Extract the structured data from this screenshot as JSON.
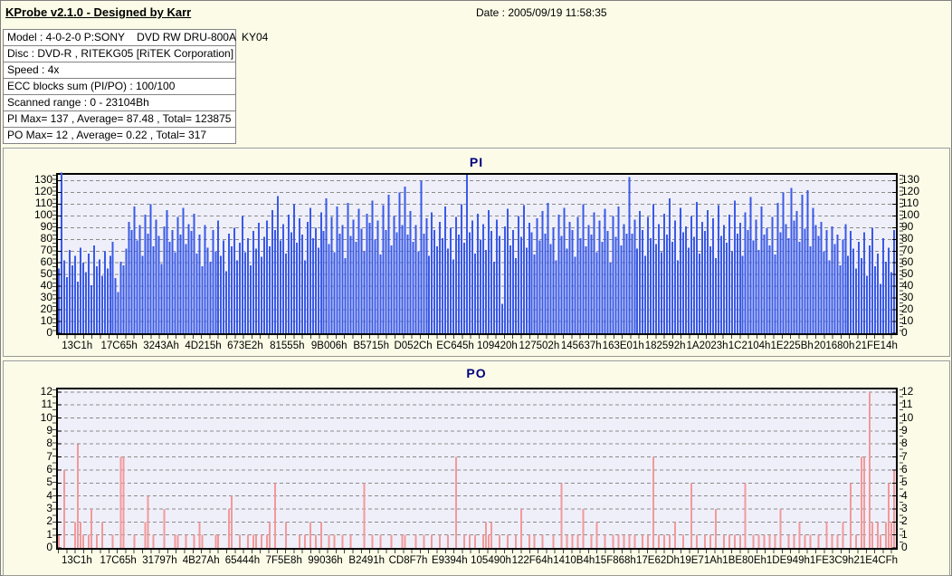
{
  "header": {
    "title": "KProbe v2.1.0 - Designed by Karr",
    "date": "Date : 2005/09/19 11:58:35"
  },
  "info": {
    "rows": [
      "Model : 4-0-2-0 P:SONY    DVD RW DRU-800A  KY04",
      "Disc : DVD-R , RITEKG05 [RiTEK Corporation]",
      "Speed : 4x",
      "ECC blocks sum (PI/PO) : 100/100",
      "Scanned range : 0 - 23104Bh",
      "PI Max= 137 , Average= 87.48 , Total= 123875",
      "PO Max= 12 , Average= 0.22 , Total= 317"
    ]
  },
  "colors": {
    "pi_bar": "#3a5ae6",
    "po_bar": "#f29a9a",
    "plot_bg": "#efeffa",
    "grid": "#8b8b8b",
    "title_navy": "#000080",
    "page_bg": "#fbfbe7"
  },
  "chart_data": [
    {
      "type": "bar",
      "title": "PI",
      "ylabel": "",
      "xlabel": "",
      "ylim": [
        0,
        135
      ],
      "grid": true,
      "legend": "none",
      "bar_color": "#3a5ae6",
      "stats": {
        "max": 137,
        "average": 87.48,
        "total": 123875
      },
      "yticks": [
        0,
        10,
        20,
        30,
        40,
        50,
        60,
        70,
        80,
        90,
        100,
        110,
        120,
        130
      ],
      "xlabels": [
        "13C1h",
        "17C65h",
        "3243Ah",
        "4D215h",
        "673E2h",
        "81555h",
        "9B006h",
        "B5715h",
        "D052Ch",
        "EC645h",
        "109420h",
        "127502h",
        "145637h",
        "163E01h",
        "182592h",
        "1A2023h",
        "1C2104h",
        "1E225Bh",
        "201680h",
        "21FE14h"
      ],
      "values": [
        55,
        137,
        62,
        48,
        71,
        58,
        66,
        44,
        73,
        60,
        52,
        68,
        41,
        75,
        57,
        63,
        49,
        70,
        55,
        66,
        78,
        47,
        35,
        61,
        58,
        72,
        95,
        88,
        108,
        79,
        92,
        66,
        101,
        85,
        110,
        74,
        97,
        83,
        59,
        91,
        105,
        78,
        88,
        69,
        99,
        84,
        107,
        76,
        93,
        87,
        102,
        68,
        84,
        57,
        92,
        73,
        61,
        88,
        70,
        96,
        66,
        79,
        53,
        85,
        74,
        90,
        62,
        77,
        100,
        69,
        81,
        58,
        87,
        72,
        94,
        65,
        82,
        96,
        74,
        105,
        88,
        117,
        79,
        93,
        68,
        101,
        86,
        110,
        77,
        98,
        84,
        62,
        95,
        107,
        81,
        90,
        73,
        103,
        87,
        115,
        76,
        99,
        69,
        108,
        85,
        92,
        64,
        111,
        83,
        97,
        78,
        106,
        89,
        70,
        102,
        94,
        113,
        80,
        96,
        67,
        109,
        88,
        118,
        75,
        100,
        86,
        120,
        92,
        125,
        84,
        104,
        78,
        92,
        70,
        130,
        85,
        98,
        66,
        103,
        88,
        74,
        95,
        81,
        108,
        72,
        90,
        63,
        99,
        84,
        110,
        77,
        135,
        86,
        96,
        68,
        102,
        80,
        93,
        71,
        105,
        87,
        61,
        97,
        83,
        25,
        91,
        106,
        75,
        88,
        64,
        100,
        82,
        109,
        73,
        94,
        86,
        67,
        98,
        79,
        104,
        85,
        111,
        76,
        90,
        62,
        101,
        83,
        107,
        72,
        95,
        88,
        65,
        99,
        81,
        110,
        74,
        92,
        84,
        103,
        69,
        96,
        78,
        106,
        87,
        60,
        100,
        82,
        108,
        75,
        93,
        85,
        133,
        85,
        97,
        72,
        104,
        88,
        66,
        99,
        81,
        110,
        76,
        93,
        69,
        102,
        84,
        115,
        78,
        96,
        62,
        107,
        86,
        91,
        73,
        100,
        82,
        112,
        68,
        95,
        87,
        105,
        74,
        98,
        64,
        109,
        83,
        92,
        77,
        101,
        70,
        113,
        85,
        94,
        66,
        103,
        88,
        116,
        79,
        97,
        71,
        108,
        84,
        90,
        75,
        99,
        67,
        111,
        86,
        120,
        93,
        81,
        124,
        96,
        104,
        78,
        118,
        89,
        122,
        74,
        107,
        92,
        83,
        95,
        70,
        88,
        62,
        91,
        76,
        84,
        58,
        80,
        93,
        66,
        87,
        72,
        55,
        78,
        64,
        86,
        49,
        75,
        90,
        57,
        68,
        42,
        81,
        61,
        73,
        52,
        88
      ]
    },
    {
      "type": "bar",
      "title": "PO",
      "ylabel": "",
      "xlabel": "",
      "ylim": [
        0,
        12.2
      ],
      "grid": true,
      "legend": "none",
      "bar_color": "#f29a9a",
      "stats": {
        "max": 12,
        "average": 0.22,
        "total": 317
      },
      "yticks": [
        0,
        1,
        2,
        3,
        4,
        5,
        6,
        7,
        8,
        9,
        10,
        11,
        12
      ],
      "xlabels": [
        "13C1h",
        "17C65h",
        "31797h",
        "4B27Ah",
        "65444h",
        "7F5E8h",
        "99036h",
        "B2491h",
        "CD8F7h",
        "E9394h",
        "105490h",
        "122F64h",
        "1410B4h",
        "15F868h",
        "17E62Dh",
        "19E71Ah",
        "1BE80Eh",
        "1DE949h",
        "1FE3C9h",
        "21E4CFh"
      ],
      "count": 310,
      "points": [
        [
          0,
          1
        ],
        [
          2,
          6
        ],
        [
          6,
          2
        ],
        [
          7,
          8
        ],
        [
          8,
          2
        ],
        [
          9,
          1
        ],
        [
          11,
          1
        ],
        [
          12,
          3
        ],
        [
          14,
          1
        ],
        [
          16,
          2
        ],
        [
          20,
          1
        ],
        [
          23,
          7
        ],
        [
          24,
          7
        ],
        [
          28,
          1
        ],
        [
          32,
          2
        ],
        [
          33,
          4
        ],
        [
          35,
          1
        ],
        [
          39,
          3
        ],
        [
          43,
          1
        ],
        [
          44,
          1
        ],
        [
          47,
          1
        ],
        [
          50,
          1
        ],
        [
          52,
          2
        ],
        [
          53,
          1
        ],
        [
          58,
          1
        ],
        [
          59,
          1
        ],
        [
          63,
          3
        ],
        [
          64,
          4
        ],
        [
          67,
          1
        ],
        [
          70,
          1
        ],
        [
          72,
          1
        ],
        [
          73,
          1
        ],
        [
          75,
          1
        ],
        [
          77,
          1
        ],
        [
          78,
          2
        ],
        [
          80,
          5
        ],
        [
          84,
          2
        ],
        [
          89,
          1
        ],
        [
          91,
          1
        ],
        [
          93,
          2
        ],
        [
          95,
          1
        ],
        [
          97,
          2
        ],
        [
          100,
          1
        ],
        [
          102,
          1
        ],
        [
          105,
          1
        ],
        [
          108,
          1
        ],
        [
          113,
          5
        ],
        [
          116,
          1
        ],
        [
          119,
          1
        ],
        [
          123,
          1
        ],
        [
          127,
          1
        ],
        [
          128,
          1
        ],
        [
          132,
          1
        ],
        [
          135,
          1
        ],
        [
          138,
          1
        ],
        [
          141,
          1
        ],
        [
          144,
          1
        ],
        [
          147,
          7
        ],
        [
          150,
          1
        ],
        [
          152,
          1
        ],
        [
          154,
          1
        ],
        [
          157,
          1
        ],
        [
          158,
          2
        ],
        [
          159,
          1
        ],
        [
          160,
          2
        ],
        [
          163,
          1
        ],
        [
          166,
          1
        ],
        [
          169,
          1
        ],
        [
          171,
          3
        ],
        [
          174,
          1
        ],
        [
          176,
          1
        ],
        [
          179,
          1
        ],
        [
          183,
          1
        ],
        [
          186,
          5
        ],
        [
          188,
          1
        ],
        [
          190,
          1
        ],
        [
          192,
          1
        ],
        [
          194,
          3
        ],
        [
          197,
          1
        ],
        [
          199,
          2
        ],
        [
          202,
          1
        ],
        [
          205,
          1
        ],
        [
          207,
          1
        ],
        [
          209,
          1
        ],
        [
          211,
          1
        ],
        [
          213,
          1
        ],
        [
          216,
          1
        ],
        [
          218,
          1
        ],
        [
          220,
          7
        ],
        [
          222,
          1
        ],
        [
          224,
          1
        ],
        [
          226,
          1
        ],
        [
          228,
          2
        ],
        [
          231,
          1
        ],
        [
          234,
          5
        ],
        [
          236,
          1
        ],
        [
          239,
          1
        ],
        [
          241,
          1
        ],
        [
          243,
          3
        ],
        [
          246,
          1
        ],
        [
          248,
          1
        ],
        [
          250,
          1
        ],
        [
          252,
          1
        ],
        [
          254,
          5
        ],
        [
          257,
          1
        ],
        [
          259,
          1
        ],
        [
          261,
          1
        ],
        [
          263,
          1
        ],
        [
          265,
          1
        ],
        [
          267,
          3
        ],
        [
          270,
          1
        ],
        [
          272,
          1
        ],
        [
          274,
          2
        ],
        [
          276,
          1
        ],
        [
          278,
          1
        ],
        [
          281,
          1
        ],
        [
          284,
          2
        ],
        [
          286,
          1
        ],
        [
          288,
          1
        ],
        [
          290,
          2
        ],
        [
          293,
          5
        ],
        [
          295,
          1
        ],
        [
          297,
          7
        ],
        [
          298,
          7
        ],
        [
          300,
          12
        ],
        [
          301,
          2
        ],
        [
          303,
          2
        ],
        [
          304,
          1
        ],
        [
          306,
          2
        ],
        [
          307,
          5
        ],
        [
          308,
          2
        ],
        [
          309,
          6
        ]
      ]
    }
  ]
}
